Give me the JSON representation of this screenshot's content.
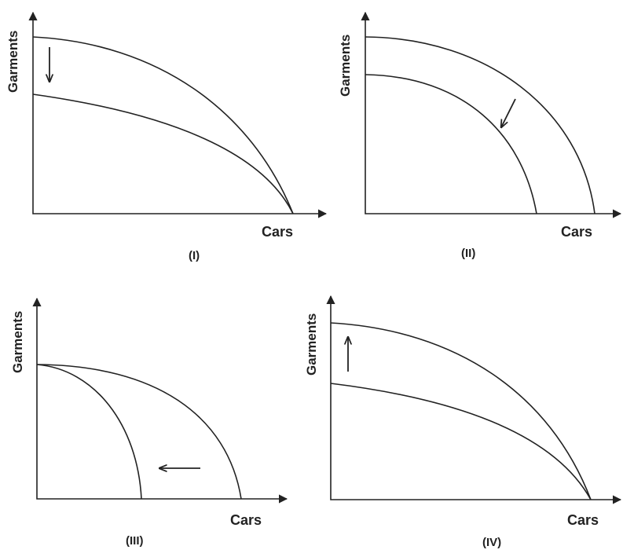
{
  "panels": [
    {
      "id": "I",
      "panel_label": "(I)",
      "xlabel": "Cars",
      "ylabel": "Garments",
      "shift": "garments-intercept-down"
    },
    {
      "id": "II",
      "panel_label": "(II)",
      "xlabel": "Cars",
      "ylabel": "Garments",
      "shift": "inward-parallel"
    },
    {
      "id": "III",
      "panel_label": "(III)",
      "xlabel": "Cars",
      "ylabel": "Garments",
      "shift": "cars-intercept-left"
    },
    {
      "id": "IV",
      "panel_label": "(IV)",
      "xlabel": "Cars",
      "ylabel": "Garments",
      "shift": "garments-intercept-up"
    }
  ],
  "colors": {
    "line": "#222222",
    "background": "#ffffff"
  }
}
